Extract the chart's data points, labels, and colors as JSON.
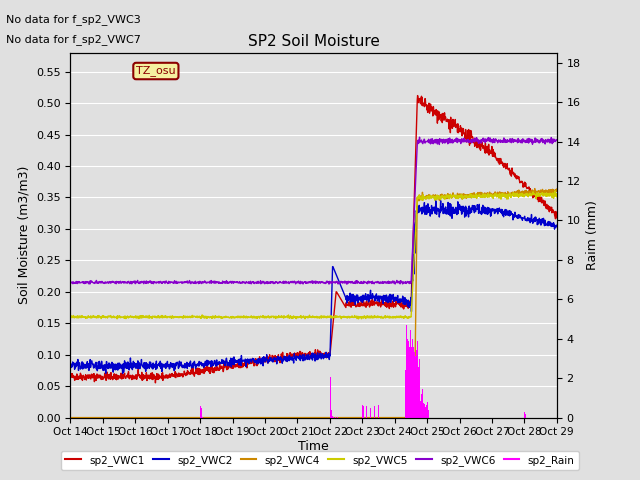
{
  "title": "SP2 Soil Moisture",
  "ylabel_left": "Soil Moisture (m3/m3)",
  "ylabel_right": "Raim (mm)",
  "xlabel": "Time",
  "no_data_text": [
    "No data for f_sp2_VWC3",
    "No data for f_sp2_VWC7"
  ],
  "tz_label": "TZ_osu",
  "xlim": [
    0,
    15
  ],
  "ylim_left": [
    0.0,
    0.58
  ],
  "ylim_right": [
    0.0,
    18.5
  ],
  "yticks_left": [
    0.0,
    0.05,
    0.1,
    0.15,
    0.2,
    0.25,
    0.3,
    0.35,
    0.4,
    0.45,
    0.5,
    0.55
  ],
  "yticks_right": [
    0,
    2,
    4,
    6,
    8,
    10,
    12,
    14,
    16,
    18
  ],
  "xtick_labels": [
    "Oct 14",
    "Oct 15",
    "Oct 16",
    "Oct 17",
    "Oct 18",
    "Oct 19",
    "Oct 20",
    "Oct 21",
    "Oct 22",
    "Oct 23",
    "Oct 24",
    "Oct 25",
    "Oct 26",
    "Oct 27",
    "Oct 28",
    "Oct 29"
  ],
  "background_color": "#e0e0e0",
  "plot_bg_color": "#e0e0e0",
  "grid_color": "#ffffff",
  "colors": {
    "VWC1": "#cc0000",
    "VWC2": "#0000cc",
    "VWC4": "#cc8800",
    "VWC5": "#cccc00",
    "VWC6": "#8800cc",
    "Rain": "#ff00ff"
  },
  "legend_labels": [
    "sp2_VWC1",
    "sp2_VWC2",
    "sp2_VWC4",
    "sp2_VWC5",
    "sp2_VWC6",
    "sp2_Rain"
  ],
  "legend_colors": [
    "#cc0000",
    "#0000cc",
    "#cc8800",
    "#cccc00",
    "#8800cc",
    "#ff00ff"
  ],
  "legend_linestyles": [
    "-",
    "-",
    "-",
    "-",
    "-",
    "-"
  ]
}
